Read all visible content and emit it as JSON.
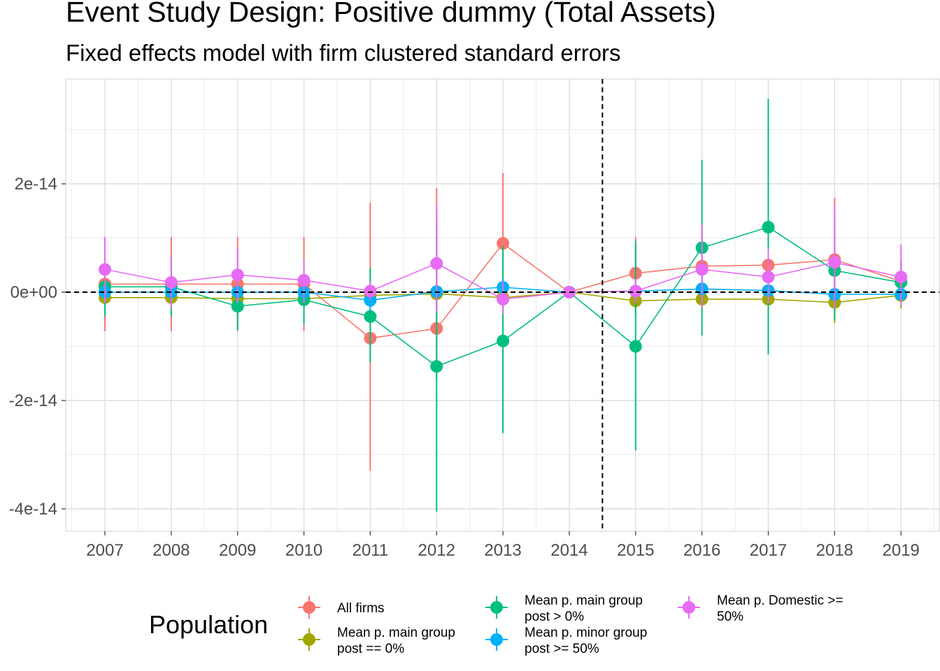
{
  "chart_data": {
    "type": "line",
    "title": "Event Study Design: Positive dummy (Total Assets)",
    "subtitle": "Fixed effects model with firm clustered standard errors",
    "x": [
      "2007",
      "2008",
      "2009",
      "2010",
      "2011",
      "2012",
      "2013",
      "2014",
      "2015",
      "2016",
      "2017",
      "2018",
      "2019"
    ],
    "xlabel": "",
    "ylabel": "",
    "ylim": [
      -4.4e-14,
      3.9e-14
    ],
    "yticks": [
      -4e-14,
      -2e-14,
      0,
      2e-14
    ],
    "ytick_labels": [
      "-4e-14",
      "-2e-14",
      "0e+00",
      "2e-14"
    ],
    "reference_lines": {
      "horizontal": 0,
      "vertical_between": [
        "2014",
        "2015"
      ],
      "style": "dashed"
    },
    "grid": true,
    "legend": {
      "title": "Population",
      "position": "bottom"
    },
    "series": [
      {
        "name": "All firms",
        "color": "#F8766D",
        "values": [
          1.5e-15,
          1.5e-15,
          1.5e-15,
          1.5e-15,
          -8.5e-15,
          -6.7e-15,
          9e-15,
          0,
          3.5e-15,
          4.8e-15,
          5e-15,
          6e-15,
          2e-15
        ],
        "lower": [
          -7.2e-15,
          -7.2e-15,
          -7.2e-15,
          -7.2e-15,
          -3.3e-14,
          -1.6e-14,
          -3e-15,
          0,
          -3e-15,
          -2e-15,
          -2e-15,
          -5e-15,
          -2e-15
        ],
        "upper": [
          1.02e-14,
          1.02e-14,
          1.02e-14,
          1.02e-14,
          1.65e-14,
          1.92e-14,
          2.2e-14,
          0,
          1.02e-14,
          1.15e-14,
          1.2e-14,
          1.74e-14,
          6e-15
        ]
      },
      {
        "name": "Mean p. main group post == 0%",
        "color": "#A3A500",
        "values": [
          -1e-15,
          -1e-15,
          -1.2e-15,
          -1.2e-15,
          -6e-16,
          -3e-16,
          -1e-15,
          0,
          -1.6e-15,
          -1.3e-15,
          -1.3e-15,
          -1.9e-15,
          -6e-16
        ],
        "lower": [
          -4e-15,
          -4e-15,
          -4e-15,
          -4e-15,
          -4e-15,
          -3e-15,
          -4e-15,
          0,
          -4e-15,
          -4e-15,
          -4e-15,
          -5.7e-15,
          -3e-15
        ],
        "upper": [
          2e-15,
          2e-15,
          2e-15,
          2e-15,
          3e-15,
          2e-15,
          2e-15,
          0,
          1e-15,
          1e-15,
          1e-15,
          2e-15,
          1.5e-15
        ]
      },
      {
        "name": "Mean p. main group post > 0%",
        "color": "#00BF7D",
        "values": [
          1e-15,
          1e-15,
          -2.6e-15,
          -1.4e-15,
          -4.5e-15,
          -1.37e-14,
          -9e-15,
          0,
          -1e-14,
          8.2e-15,
          1.2e-14,
          4e-15,
          1.8e-15
        ],
        "lower": [
          -4.5e-15,
          -4.5e-15,
          -7e-15,
          -6e-15,
          -1.3e-14,
          -4.05e-14,
          -2.6e-14,
          0,
          -2.92e-14,
          -8e-15,
          -1.15e-14,
          -5e-15,
          -2e-15
        ],
        "upper": [
          6.5e-15,
          6.5e-15,
          2e-15,
          3.5e-15,
          4.5e-15,
          1.3e-14,
          8.5e-15,
          0,
          9.5e-15,
          2.44e-14,
          3.57e-14,
          1.3e-14,
          5.5e-15
        ]
      },
      {
        "name": "Mean p. minor group post >= 50%",
        "color": "#00B0F6",
        "values": [
          0,
          0,
          0,
          0,
          -1.5e-15,
          1e-16,
          9e-16,
          0,
          2e-16,
          6e-16,
          3e-16,
          -4e-16,
          -4e-16
        ],
        "lower": [
          -2e-15,
          -2e-15,
          -2e-15,
          -2e-15,
          -3.5e-15,
          -1.5e-15,
          -1e-15,
          0,
          -1.5e-15,
          -1.5e-15,
          -1.5e-15,
          -2e-15,
          -2e-15
        ],
        "upper": [
          2e-15,
          2e-15,
          2e-15,
          2e-15,
          5e-16,
          1.5e-15,
          2.5e-15,
          0,
          2e-15,
          2.5e-15,
          2e-15,
          1e-15,
          1e-15
        ]
      },
      {
        "name": "Mean p. Domestic >= 50%",
        "color": "#E76BF3",
        "values": [
          4.2e-15,
          1.8e-15,
          3.2e-15,
          2.2e-15,
          2e-16,
          5.3e-15,
          -1.3e-15,
          0,
          2e-16,
          4.2e-15,
          2.8e-15,
          5.5e-15,
          2.8e-15
        ],
        "lower": [
          -2e-15,
          -3e-15,
          -2e-15,
          -2e-15,
          -1.5e-15,
          -3.5e-15,
          -4e-15,
          0,
          -2e-15,
          -3e-15,
          -2e-15,
          -3e-15,
          -2.5e-15
        ],
        "upper": [
          1.02e-14,
          6.5e-15,
          8.2e-15,
          6.2e-15,
          2e-15,
          1.6e-14,
          2e-15,
          0,
          2.5e-15,
          1.25e-14,
          8e-15,
          1.6e-14,
          8.8e-15
        ]
      }
    ]
  },
  "legend": {
    "title": "Population",
    "entries": [
      {
        "lines": [
          "All firms"
        ],
        "color": "#F8766D",
        "col": 0,
        "row": 0
      },
      {
        "lines": [
          "Mean p. main group",
          "post == 0%"
        ],
        "color": "#A3A500",
        "col": 0,
        "row": 1
      },
      {
        "lines": [
          "Mean p. main group",
          "post > 0%"
        ],
        "color": "#00BF7D",
        "col": 1,
        "row": 0
      },
      {
        "lines": [
          "Mean p. minor group",
          "post >= 50%"
        ],
        "color": "#00B0F6",
        "col": 1,
        "row": 1
      },
      {
        "lines": [
          "Mean p. Domestic >=",
          "50%"
        ],
        "color": "#E76BF3",
        "col": 2,
        "row": 0
      }
    ]
  }
}
